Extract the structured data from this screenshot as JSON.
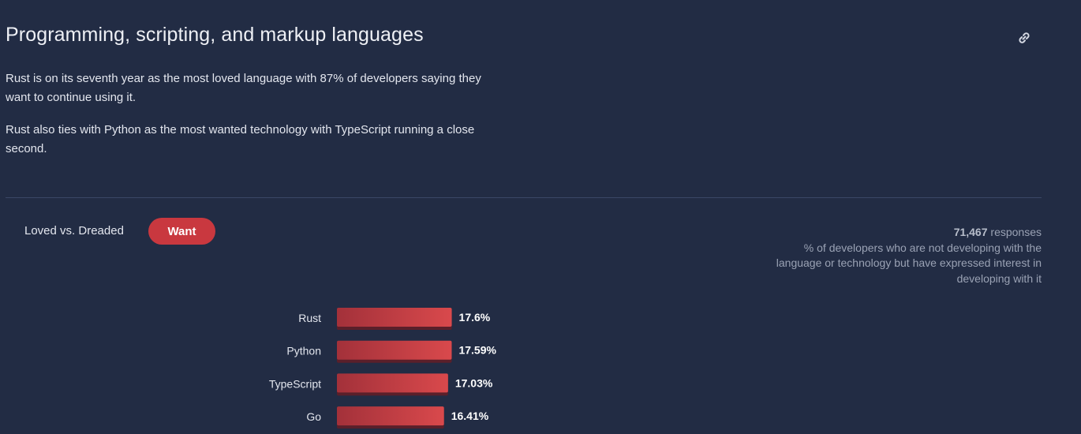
{
  "header": {
    "title": "Programming, scripting, and markup languages",
    "link_icon": "link-icon"
  },
  "intro": {
    "paragraph_1": "Rust is on its seventh year as the most loved language with 87% of developers saying they want to continue using it.",
    "paragraph_2": "Rust also ties with Python as the most wanted technology with TypeScript running a close second."
  },
  "tabs": [
    {
      "label": "Loved vs. Dreaded",
      "active": false
    },
    {
      "label": "Want",
      "active": true
    }
  ],
  "meta": {
    "responses_count": "71,467",
    "responses_word": "responses",
    "description": "% of developers who are not developing with the language or technology but have expressed interest in developing with it"
  },
  "colors": {
    "background": "#222c44",
    "accent": "#c9383f",
    "bar_start": "#a3313a",
    "bar_end": "#d9494c"
  },
  "chart_data": {
    "type": "bar",
    "orientation": "horizontal",
    "categories": [
      "Rust",
      "Python",
      "TypeScript",
      "Go"
    ],
    "values": [
      17.6,
      17.59,
      17.03,
      16.41
    ],
    "value_labels": [
      "17.6%",
      "17.59%",
      "17.03%",
      "16.41%"
    ],
    "unit": "%",
    "xlim": [
      0,
      100
    ],
    "grid": false
  }
}
